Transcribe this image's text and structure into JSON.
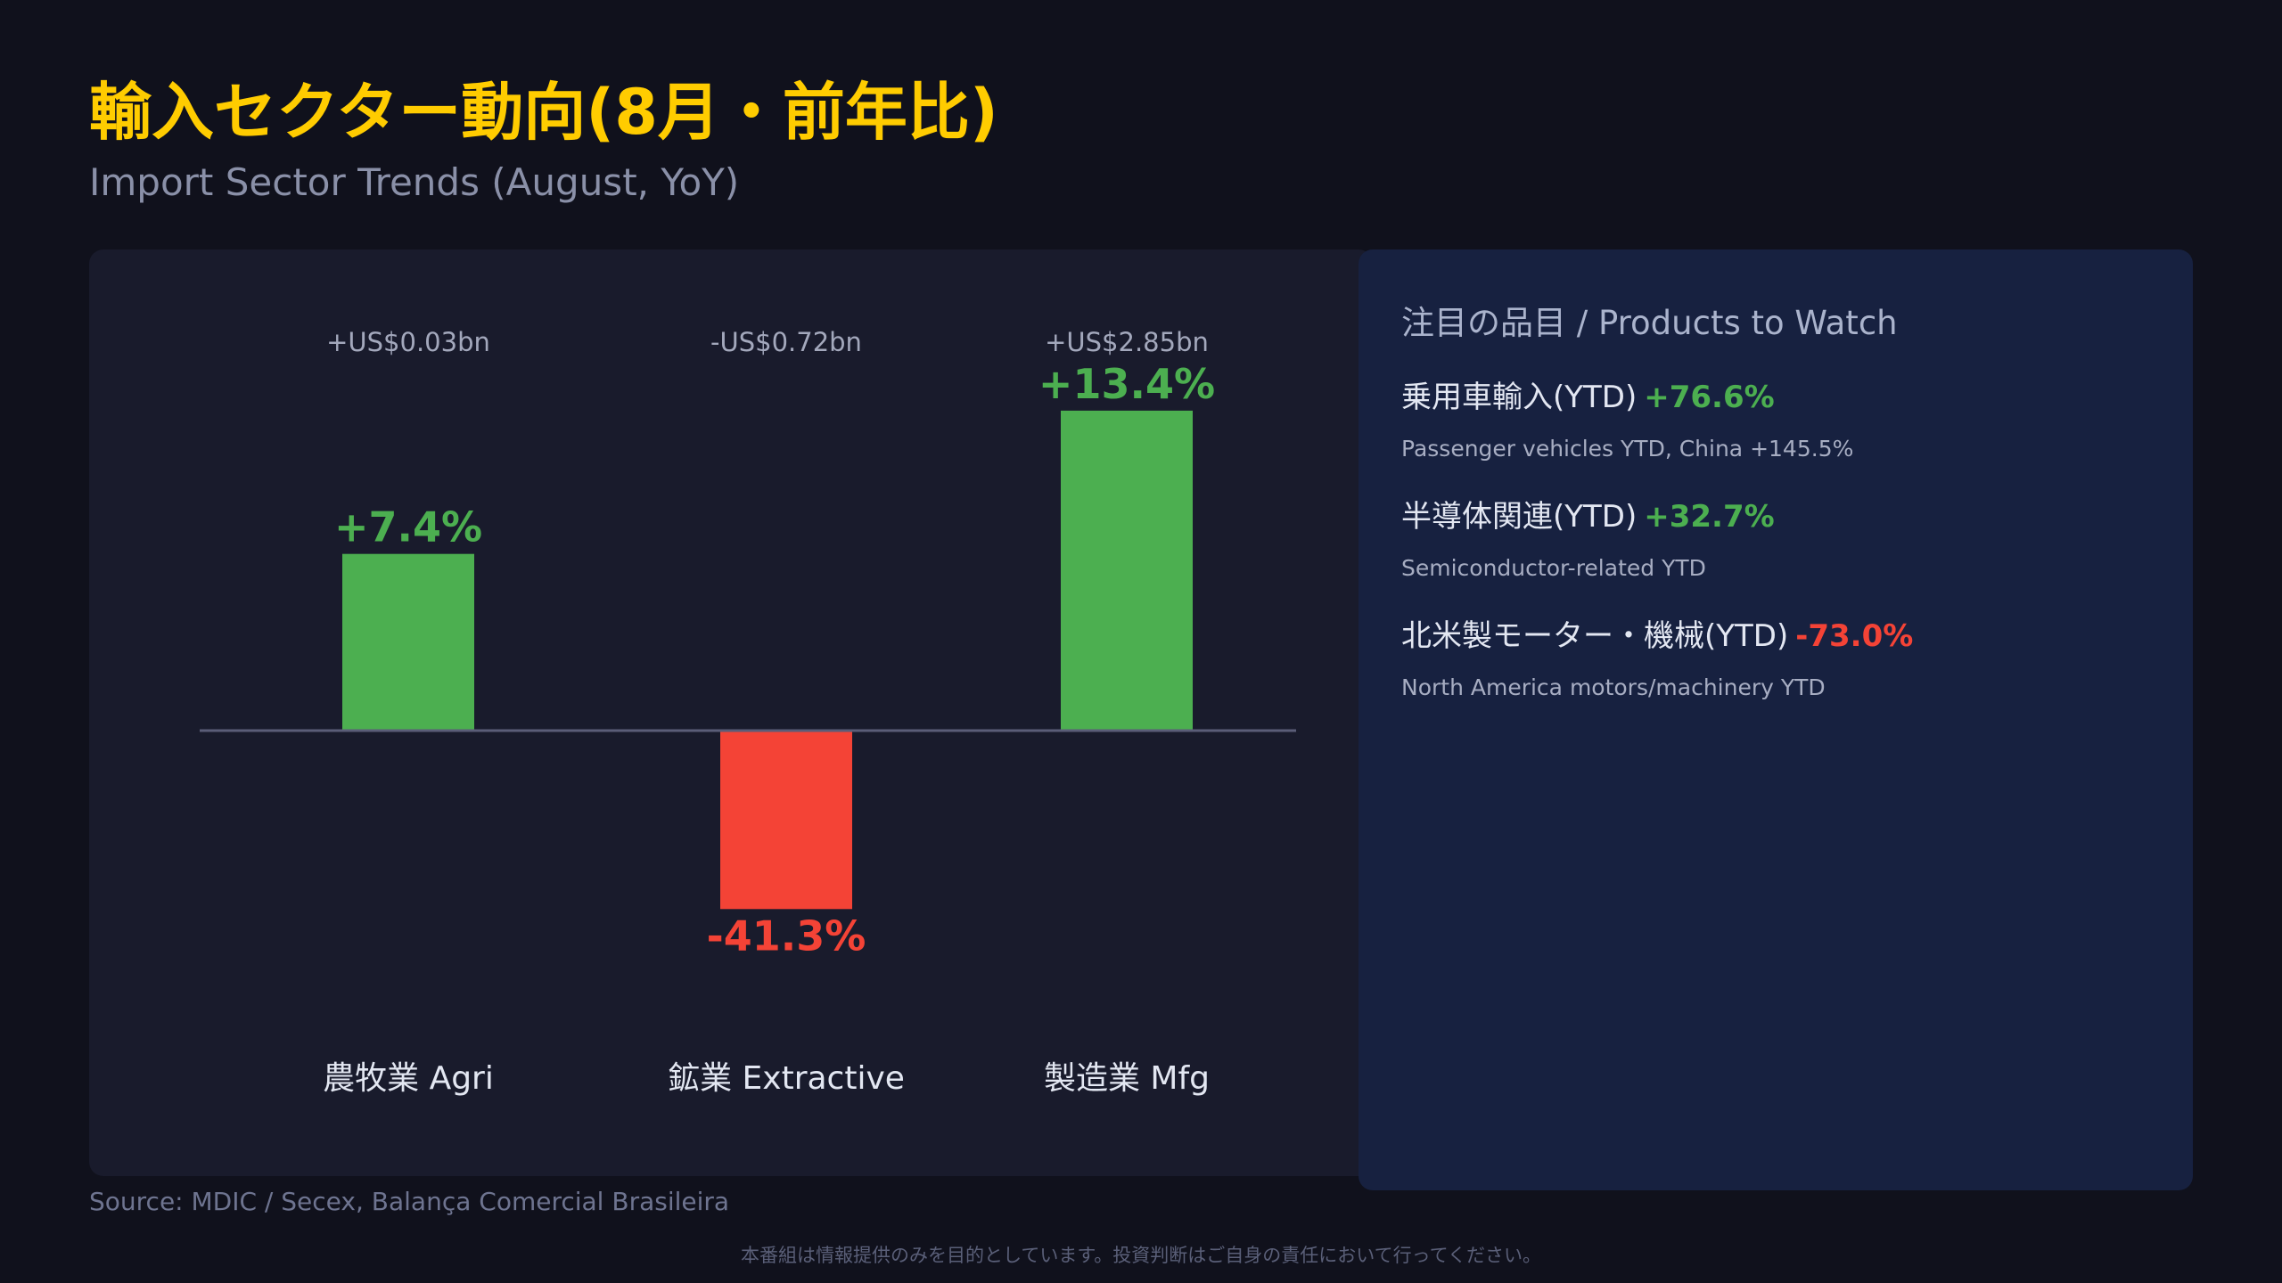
{
  "header": {
    "title": "輸入セクター動向(8月・前年比)",
    "subtitle": "Import Sector Trends (August, YoY)"
  },
  "colors": {
    "positive": "#4caf50",
    "negative": "#f44336",
    "title": "#ffcc00",
    "baseline": "#4a4d66"
  },
  "chart_data": {
    "type": "bar",
    "title": "",
    "xlabel": "",
    "ylabel": "",
    "categories": [
      "農牧業 Agri",
      "鉱業 Extractive",
      "製造業 Mfg"
    ],
    "series": [
      {
        "values": [
          7.4,
          -41.3,
          13.4
        ]
      }
    ],
    "value_labels": [
      "+7.4%",
      "-41.3%",
      "+13.4%"
    ],
    "amount_labels": [
      "+US$0.03bn",
      "-US$0.72bn",
      "+US$2.85bn"
    ],
    "grid": false,
    "legend": "none"
  },
  "watch": {
    "heading": "注目の品目 / Products to Watch",
    "items": [
      {
        "label": "乗用車輸入(YTD)",
        "value": "+76.6%",
        "direction": "positive",
        "sub": "Passenger vehicles YTD, China +145.5%"
      },
      {
        "label": "半導体関連(YTD)",
        "value": "+32.7%",
        "direction": "positive",
        "sub": "Semiconductor-related YTD"
      },
      {
        "label": "北米製モーター・機械(YTD)",
        "value": "-73.0%",
        "direction": "negative",
        "sub": "North America motors/machinery YTD"
      }
    ]
  },
  "footer": {
    "source": "Source: MDIC / Secex, Balança Comercial Brasileira",
    "disclaimer": "本番組は情報提供のみを目的としています。投資判断はご自身の責任において行ってください。"
  }
}
